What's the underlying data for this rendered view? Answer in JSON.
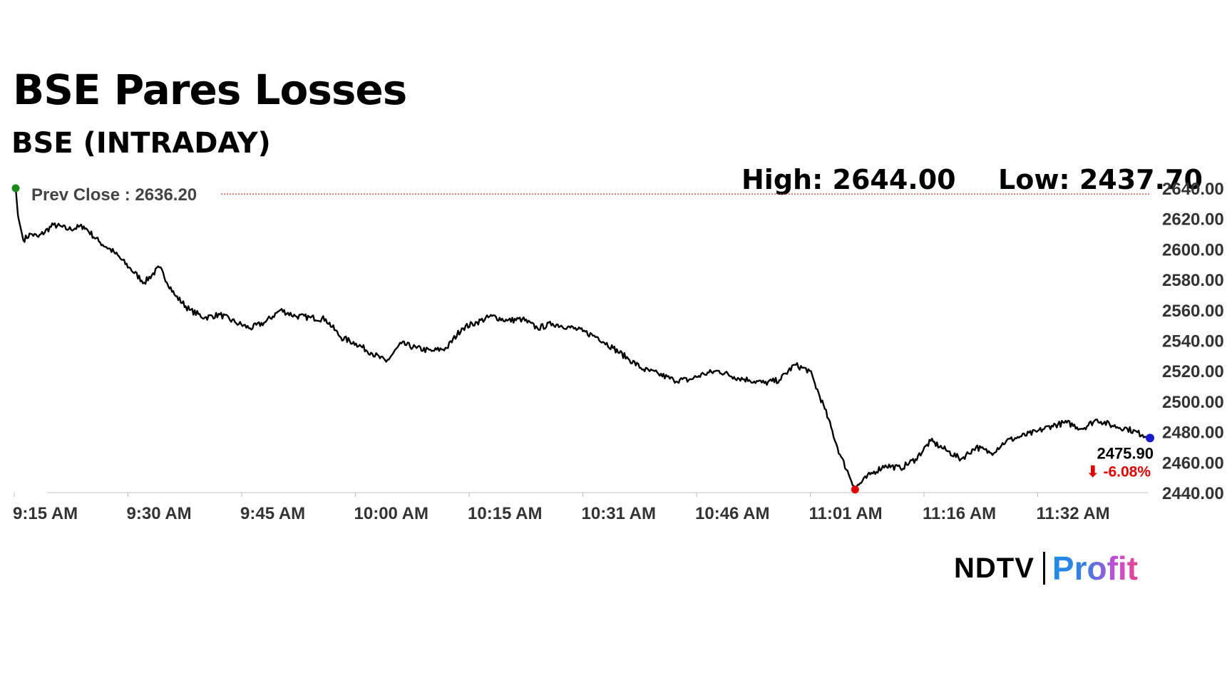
{
  "title": "BSE Pares Losses",
  "subtitle": "BSE (INTRADAY)",
  "stats": {
    "high_text": "High: 2644.00",
    "low_text": "Low: 2437.70"
  },
  "brand": {
    "ndtv": "NDTV",
    "profit": "Profit"
  },
  "chart_data": {
    "type": "line",
    "xlabel": "",
    "ylabel": "",
    "ylim": [
      2440,
      2640
    ],
    "y_ticks": [
      2640,
      2620,
      2600,
      2580,
      2560,
      2540,
      2520,
      2500,
      2480,
      2460,
      2440
    ],
    "y_tick_labels": [
      "2640.00",
      "2620.00",
      "2600.00",
      "2580.00",
      "2560.00",
      "2540.00",
      "2520.00",
      "2500.00",
      "2480.00",
      "2460.00",
      "2440.00"
    ],
    "x_tick_labels": [
      "9:15 AM",
      "9:30 AM",
      "9:45 AM",
      "10:00 AM",
      "10:15 AM",
      "10:31 AM",
      "10:46 AM",
      "11:01 AM",
      "11:16 AM",
      "11:32 AM"
    ],
    "prev_close": 2636.2,
    "prev_close_label": "Prev Close : 2636.20",
    "last_value_label": "2475.90",
    "change_label": "⬇ -6.08%",
    "grid": false,
    "colors": {
      "line": "#000000",
      "prev_close_line": "#c0392b",
      "open_marker": "#1a8a1a",
      "low_marker": "#e00000",
      "last_marker": "#1a1acc",
      "change_text": "#e00000"
    },
    "series": [
      {
        "x": [
          0,
          0.3,
          1,
          2,
          3,
          5,
          7,
          9,
          11,
          13,
          15,
          17,
          19,
          21,
          23,
          25,
          27,
          29,
          31,
          33,
          35,
          37,
          39,
          41,
          43,
          45,
          47,
          49,
          51,
          53,
          55,
          57,
          59,
          61,
          63,
          65,
          67,
          69,
          71,
          73,
          75,
          77,
          79,
          81,
          83,
          85,
          87,
          89,
          91,
          93,
          95,
          97,
          99,
          101,
          103,
          105,
          107,
          109,
          111,
          113,
          115,
          117,
          119,
          121,
          123,
          125,
          127,
          129,
          131,
          133,
          135,
          137,
          139,
          141,
          143,
          145,
          147,
          149,
          150
        ],
        "values": [
          2640,
          2622,
          2606,
          2610,
          2608,
          2616,
          2613,
          2615,
          2605,
          2598,
          2588,
          2578,
          2588,
          2570,
          2560,
          2555,
          2557,
          2552,
          2548,
          2552,
          2560,
          2556,
          2555,
          2554,
          2542,
          2538,
          2532,
          2526,
          2538,
          2535,
          2533,
          2535,
          2548,
          2552,
          2556,
          2553,
          2554,
          2548,
          2551,
          2549,
          2546,
          2542,
          2535,
          2528,
          2521,
          2518,
          2514,
          2514,
          2518,
          2520,
          2516,
          2514,
          2512,
          2514,
          2524,
          2520,
          2495,
          2465,
          2443,
          2452,
          2458,
          2456,
          2462,
          2474,
          2468,
          2462,
          2470,
          2466,
          2474,
          2477,
          2480,
          2484,
          2486,
          2482,
          2488,
          2484,
          2482,
          2478,
          2475.9
        ]
      }
    ]
  }
}
